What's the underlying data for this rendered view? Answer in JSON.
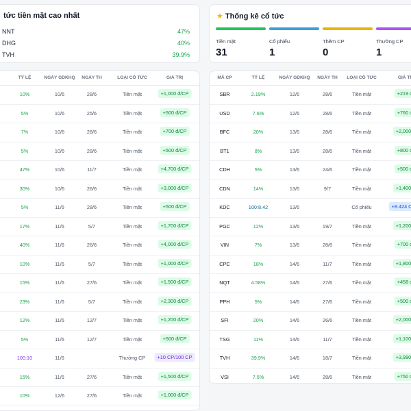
{
  "top_cash": {
    "title": "tức tiền mặt cao nhất",
    "items": [
      {
        "code": "NNT",
        "pct": "47%"
      },
      {
        "code": "DHG",
        "pct": "40%"
      },
      {
        "code": "TVH",
        "pct": "39.9%"
      }
    ]
  },
  "stats": {
    "title": "Thống kê cổ tức",
    "bar_colors": [
      "#22c55e",
      "#3b9fd8",
      "#eab308",
      "#a855f7"
    ],
    "items": [
      {
        "label": "Tiền mặt",
        "value": "31"
      },
      {
        "label": "Cổ phiếu",
        "value": "1"
      },
      {
        "label": "Thêm CP",
        "value": "0"
      },
      {
        "label": "Thưởng CP",
        "value": "1"
      }
    ]
  },
  "left_table": {
    "headers": [
      "TỶ LỆ",
      "NGÀY GDKHQ",
      "NGÀY TH",
      "LOẠI CỔ TỨC",
      "GIÁ TRỊ"
    ],
    "rows": [
      {
        "rate": "10%",
        "ex_date": "10/6",
        "pay_date": "28/6",
        "type": "Tiền mặt",
        "value": "+1,000 đ/CP",
        "kind": "cash"
      },
      {
        "rate": "5%",
        "ex_date": "10/6",
        "pay_date": "25/6",
        "type": "Tiền mặt",
        "value": "+500 đ/CP",
        "kind": "cash"
      },
      {
        "rate": "7%",
        "ex_date": "10/6",
        "pay_date": "28/6",
        "type": "Tiền mặt",
        "value": "+700 đ/CP",
        "kind": "cash"
      },
      {
        "rate": "5%",
        "ex_date": "10/6",
        "pay_date": "28/6",
        "type": "Tiền mặt",
        "value": "+500 đ/CP",
        "kind": "cash"
      },
      {
        "rate": "47%",
        "ex_date": "10/6",
        "pay_date": "11/7",
        "type": "Tiền mặt",
        "value": "+4,700 đ/CP",
        "kind": "cash"
      },
      {
        "rate": "30%",
        "ex_date": "10/6",
        "pay_date": "26/6",
        "type": "Tiền mặt",
        "value": "+3,000 đ/CP",
        "kind": "cash"
      },
      {
        "rate": "5%",
        "ex_date": "11/6",
        "pay_date": "28/6",
        "type": "Tiền mặt",
        "value": "+500 đ/CP",
        "kind": "cash"
      },
      {
        "rate": "17%",
        "ex_date": "11/6",
        "pay_date": "5/7",
        "type": "Tiền mặt",
        "value": "+1,700 đ/CP",
        "kind": "cash"
      },
      {
        "rate": "40%",
        "ex_date": "11/6",
        "pay_date": "26/6",
        "type": "Tiền mặt",
        "value": "+4,000 đ/CP",
        "kind": "cash"
      },
      {
        "rate": "10%",
        "ex_date": "11/6",
        "pay_date": "5/7",
        "type": "Tiền mặt",
        "value": "+1,000 đ/CP",
        "kind": "cash"
      },
      {
        "rate": "15%",
        "ex_date": "11/6",
        "pay_date": "27/6",
        "type": "Tiền mặt",
        "value": "+1,500 đ/CP",
        "kind": "cash"
      },
      {
        "rate": "23%",
        "ex_date": "11/6",
        "pay_date": "5/7",
        "type": "Tiền mặt",
        "value": "+2,300 đ/CP",
        "kind": "cash"
      },
      {
        "rate": "12%",
        "ex_date": "11/6",
        "pay_date": "12/7",
        "type": "Tiền mặt",
        "value": "+1,200 đ/CP",
        "kind": "cash"
      },
      {
        "rate": "5%",
        "ex_date": "11/6",
        "pay_date": "12/7",
        "type": "Tiền mặt",
        "value": "+500 đ/CP",
        "kind": "cash"
      },
      {
        "rate": "100:10",
        "ex_date": "11/6",
        "pay_date": "",
        "type": "Thưởng CP",
        "value": "+10 CP/100 CP",
        "kind": "stock"
      },
      {
        "rate": "15%",
        "ex_date": "11/6",
        "pay_date": "27/6",
        "type": "Tiền mặt",
        "value": "+1,500 đ/CP",
        "kind": "cash"
      },
      {
        "rate": "10%",
        "ex_date": "12/6",
        "pay_date": "27/6",
        "type": "Tiền mặt",
        "value": "+1,000 đ/CP",
        "kind": "cash"
      }
    ]
  },
  "right_table": {
    "headers": [
      "MÃ CP",
      "TỶ LỆ",
      "NGÀY GDKHQ",
      "NGÀY TH",
      "LOẠI CỔ TỨC",
      "GIÁ TR"
    ],
    "rows": [
      {
        "code": "SBR",
        "rate": "2.19%",
        "ex_date": "12/6",
        "pay_date": "28/6",
        "type": "Tiền mặt",
        "value": "+219 đ/",
        "kind": "cash"
      },
      {
        "code": "USD",
        "rate": "7.6%",
        "ex_date": "12/6",
        "pay_date": "28/6",
        "type": "Tiền mặt",
        "value": "+760 đ/",
        "kind": "cash"
      },
      {
        "code": "BFC",
        "rate": "20%",
        "ex_date": "13/6",
        "pay_date": "28/6",
        "type": "Tiền mặt",
        "value": "+2,000 đ",
        "kind": "cash"
      },
      {
        "code": "BT1",
        "rate": "8%",
        "ex_date": "13/6",
        "pay_date": "28/6",
        "type": "Tiền mặt",
        "value": "+800 đ/",
        "kind": "cash"
      },
      {
        "code": "CDH",
        "rate": "5%",
        "ex_date": "13/6",
        "pay_date": "24/6",
        "type": "Tiền mặt",
        "value": "+500 đ/",
        "kind": "cash"
      },
      {
        "code": "CDN",
        "rate": "14%",
        "ex_date": "13/6",
        "pay_date": "9/7",
        "type": "Tiền mặt",
        "value": "+1,400 đ",
        "kind": "cash"
      },
      {
        "code": "KDC",
        "rate": "100:8.42",
        "ex_date": "13/6",
        "pay_date": "",
        "type": "Cổ phiếu",
        "value": "+8.424 CP/1",
        "kind": "blue"
      },
      {
        "code": "PGC",
        "rate": "12%",
        "ex_date": "13/6",
        "pay_date": "19/7",
        "type": "Tiền mặt",
        "value": "+1,200 đ",
        "kind": "cash"
      },
      {
        "code": "VIN",
        "rate": "7%",
        "ex_date": "13/6",
        "pay_date": "28/6",
        "type": "Tiền mặt",
        "value": "+700 đ/",
        "kind": "cash"
      },
      {
        "code": "CPC",
        "rate": "18%",
        "ex_date": "14/6",
        "pay_date": "11/7",
        "type": "Tiền mặt",
        "value": "+1,800 đ",
        "kind": "cash"
      },
      {
        "code": "NQT",
        "rate": "4.58%",
        "ex_date": "14/6",
        "pay_date": "27/6",
        "type": "Tiền mặt",
        "value": "+458 đ/",
        "kind": "cash"
      },
      {
        "code": "PPH",
        "rate": "5%",
        "ex_date": "14/6",
        "pay_date": "27/6",
        "type": "Tiền mặt",
        "value": "+500 đ/",
        "kind": "cash"
      },
      {
        "code": "SFI",
        "rate": "20%",
        "ex_date": "14/6",
        "pay_date": "26/6",
        "type": "Tiền mặt",
        "value": "+2,000 đ",
        "kind": "cash"
      },
      {
        "code": "TSG",
        "rate": "11%",
        "ex_date": "14/6",
        "pay_date": "11/7",
        "type": "Tiền mặt",
        "value": "+1,100 đ",
        "kind": "cash"
      },
      {
        "code": "TVH",
        "rate": "39.9%",
        "ex_date": "14/6",
        "pay_date": "18/7",
        "type": "Tiền mặt",
        "value": "+3,990 đ",
        "kind": "cash"
      },
      {
        "code": "VSI",
        "rate": "7.5%",
        "ex_date": "14/6",
        "pay_date": "28/6",
        "type": "Tiền mặt",
        "value": "+750 đ/",
        "kind": "cash"
      }
    ]
  }
}
